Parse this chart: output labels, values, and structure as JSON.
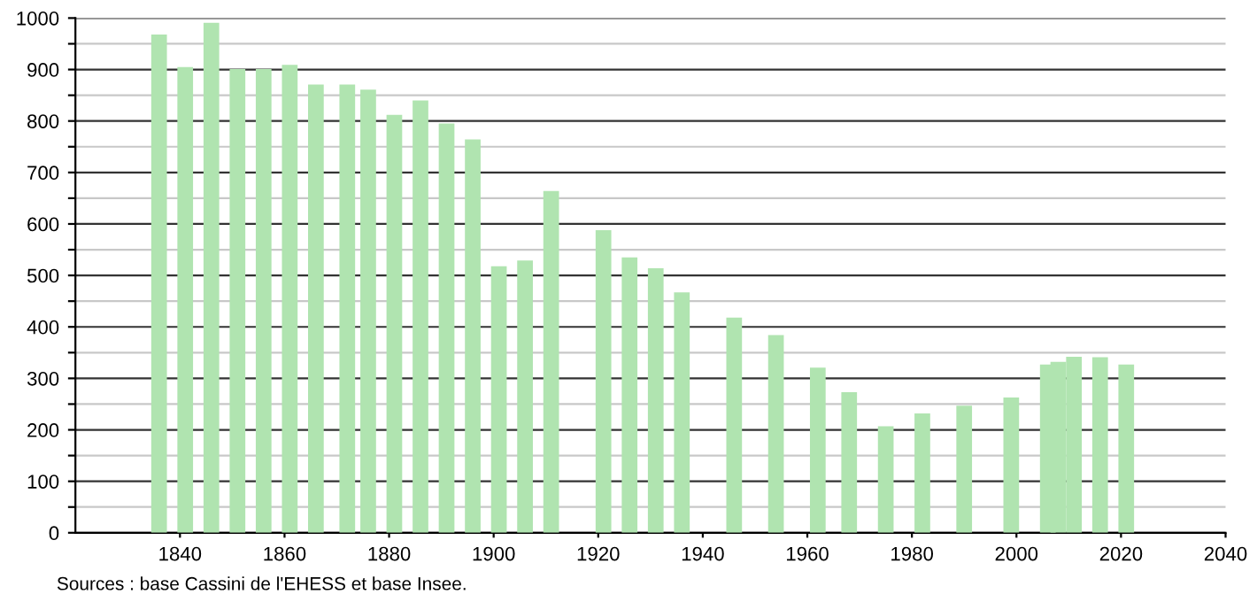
{
  "chart_data": {
    "type": "bar",
    "x": [
      1836,
      1841,
      1846,
      1851,
      1856,
      1861,
      1866,
      1872,
      1876,
      1881,
      1886,
      1891,
      1896,
      1901,
      1906,
      1911,
      1921,
      1926,
      1931,
      1936,
      1946,
      1954,
      1962,
      1968,
      1975,
      1982,
      1990,
      1999,
      2006,
      2008,
      2011,
      2016,
      2021
    ],
    "values": [
      968,
      905,
      991,
      901,
      901,
      909,
      871,
      871,
      861,
      812,
      840,
      795,
      764,
      518,
      529,
      664,
      588,
      535,
      514,
      467,
      418,
      384,
      321,
      273,
      207,
      232,
      247,
      263,
      327,
      332,
      342,
      341,
      327
    ],
    "color": "#b0e4b0",
    "xlim": [
      1820,
      2040
    ],
    "xticks": [
      1840,
      1860,
      1880,
      1900,
      1920,
      1940,
      1960,
      1980,
      2000,
      2020,
      2040
    ],
    "ylim": [
      0,
      1000
    ],
    "yticks": [
      0,
      {
        "value": 50,
        "label": null
      },
      100,
      {
        "value": 150,
        "label": null
      },
      200,
      {
        "value": 250,
        "label": null
      },
      300,
      {
        "value": 350,
        "label": null
      },
      400,
      {
        "value": 450,
        "label": null
      },
      500,
      {
        "value": 550,
        "label": null
      },
      600,
      {
        "value": 650,
        "label": null
      },
      700,
      {
        "value": 750,
        "label": null
      },
      800,
      {
        "value": 850,
        "label": null
      },
      900,
      {
        "value": 950,
        "label": null
      },
      1000
    ],
    "grid": "y",
    "annotations": [
      "Sources : base Cassini de l'EHESS et base Insee."
    ]
  }
}
